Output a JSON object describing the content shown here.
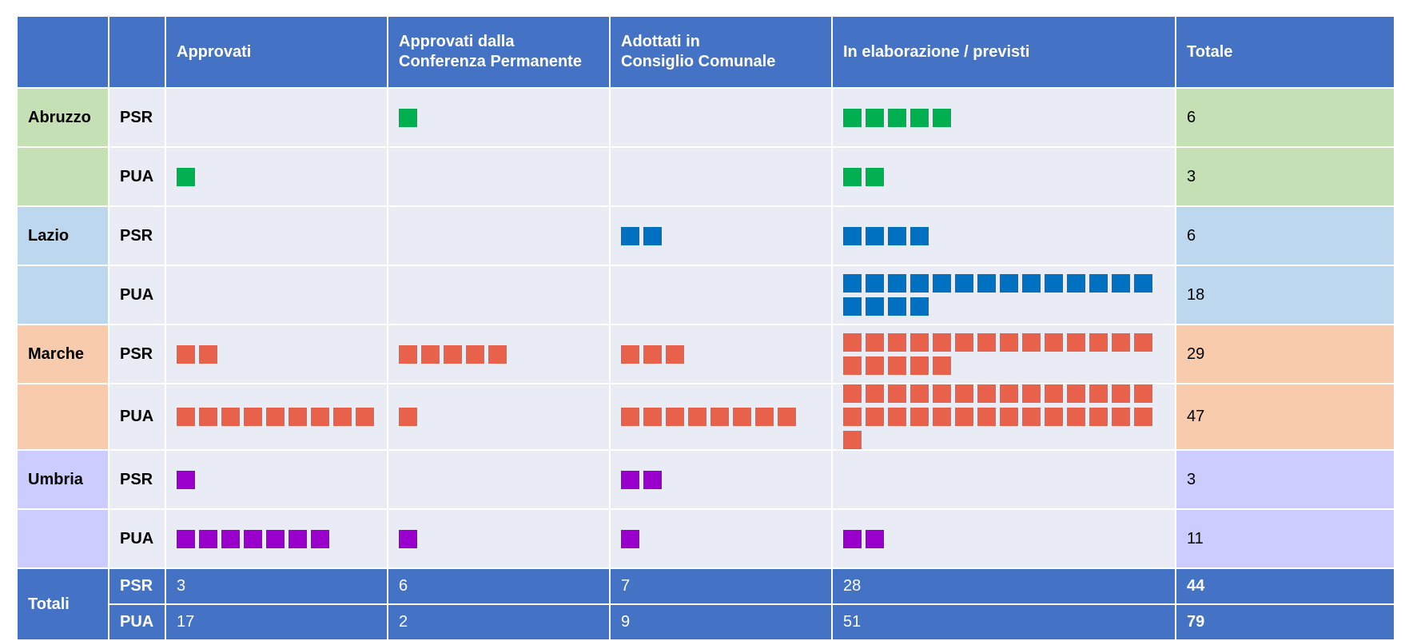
{
  "chart_data": {
    "type": "table",
    "columns": [
      "",
      "",
      "Approvati",
      "Approvati dalla\nConferenza Permanente",
      "Adottati in\nConsiglio Comunale",
      "In elaborazione / previsti",
      "Totale"
    ],
    "rows": [
      {
        "region": "Abruzzo",
        "kind": "PSR",
        "counts": [
          0,
          1,
          0,
          5
        ],
        "total": "6"
      },
      {
        "region": "",
        "kind": "PUA",
        "counts": [
          1,
          0,
          0,
          2
        ],
        "total": "3"
      },
      {
        "region": "Lazio",
        "kind": "PSR",
        "counts": [
          0,
          0,
          2,
          4
        ],
        "total": "6"
      },
      {
        "region": "",
        "kind": "PUA",
        "counts": [
          0,
          0,
          0,
          18
        ],
        "total": "18"
      },
      {
        "region": "Marche",
        "kind": "PSR",
        "counts": [
          2,
          5,
          3,
          19
        ],
        "total": "29"
      },
      {
        "region": "",
        "kind": "PUA",
        "counts": [
          9,
          1,
          8,
          29
        ],
        "total": "47"
      },
      {
        "region": "Umbria",
        "kind": "PSR",
        "counts": [
          1,
          0,
          2,
          0
        ],
        "total": "3"
      },
      {
        "region": "",
        "kind": "PUA",
        "counts": [
          7,
          1,
          1,
          2
        ],
        "total": "11"
      }
    ],
    "totals": {
      "label": "Totali",
      "rows": [
        {
          "kind": "PSR",
          "values": [
            "3",
            "6",
            "7",
            "28"
          ],
          "total": "44"
        },
        {
          "kind": "PUA",
          "values": [
            "17",
            "2",
            "9",
            "51"
          ],
          "total": "79"
        }
      ]
    }
  },
  "colors": {
    "header_bg": "#4472c4",
    "body_bg": "#e9ebf5",
    "Abruzzo": {
      "band": "#c5e0b4",
      "square": "#00b050"
    },
    "Lazio": {
      "band": "#bdd7ee",
      "square": "#0070c0"
    },
    "Marche": {
      "band": "#f8cbad",
      "square": "#e8614a"
    },
    "Umbria": {
      "band": "#ccccff",
      "square": "#9900cc"
    }
  }
}
